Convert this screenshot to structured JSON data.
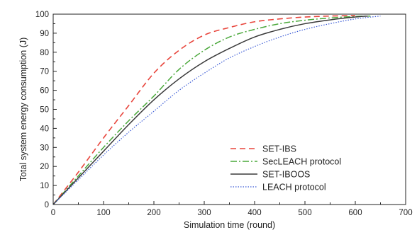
{
  "chart_data": {
    "type": "line",
    "title": "",
    "xlabel": "Simulation time (round)",
    "ylabel": "Total system energy consumption (J)",
    "xlim": [
      0,
      700
    ],
    "ylim": [
      0,
      100
    ],
    "xticks": [
      "0",
      "100",
      "200",
      "300",
      "400",
      "500",
      "600",
      "700"
    ],
    "yticks": [
      "0",
      "10",
      "20",
      "30",
      "40",
      "50",
      "60",
      "70",
      "80",
      "90",
      "100"
    ],
    "grid": false,
    "legend_position": "lower-right",
    "series": [
      {
        "name": "SET-IBS",
        "color": "#e8453c",
        "style": "dashed",
        "x": [
          0,
          50,
          100,
          150,
          200,
          250,
          300,
          350,
          400,
          450,
          500,
          550,
          600
        ],
        "y": [
          0,
          17,
          35,
          52,
          69,
          81,
          89,
          93,
          96,
          97.5,
          98.5,
          99,
          99.3
        ]
      },
      {
        "name": "SecLEACH protocol",
        "color": "#4aa83a",
        "style": "dashdot",
        "x": [
          0,
          50,
          100,
          150,
          200,
          250,
          300,
          350,
          400,
          450,
          500,
          550,
          600,
          630
        ],
        "y": [
          0,
          15,
          30,
          44,
          57,
          71,
          81,
          88,
          92,
          95,
          96.8,
          98,
          98.8,
          99
        ]
      },
      {
        "name": "SET-IBOOS",
        "color": "#3a3a3a",
        "style": "solid",
        "x": [
          0,
          50,
          100,
          150,
          200,
          250,
          300,
          350,
          400,
          450,
          500,
          550,
          600,
          625
        ],
        "y": [
          0,
          14,
          28,
          42,
          55,
          66,
          75,
          82,
          88,
          92,
          95,
          97,
          98.5,
          99
        ]
      },
      {
        "name": "LEACH protocol",
        "color": "#3b5bd6",
        "style": "dotted",
        "x": [
          0,
          50,
          100,
          150,
          200,
          250,
          300,
          350,
          400,
          450,
          500,
          550,
          600,
          650
        ],
        "y": [
          0,
          13,
          26,
          38,
          49,
          60,
          69,
          77,
          83,
          88,
          92,
          95,
          97.5,
          99
        ]
      }
    ]
  }
}
